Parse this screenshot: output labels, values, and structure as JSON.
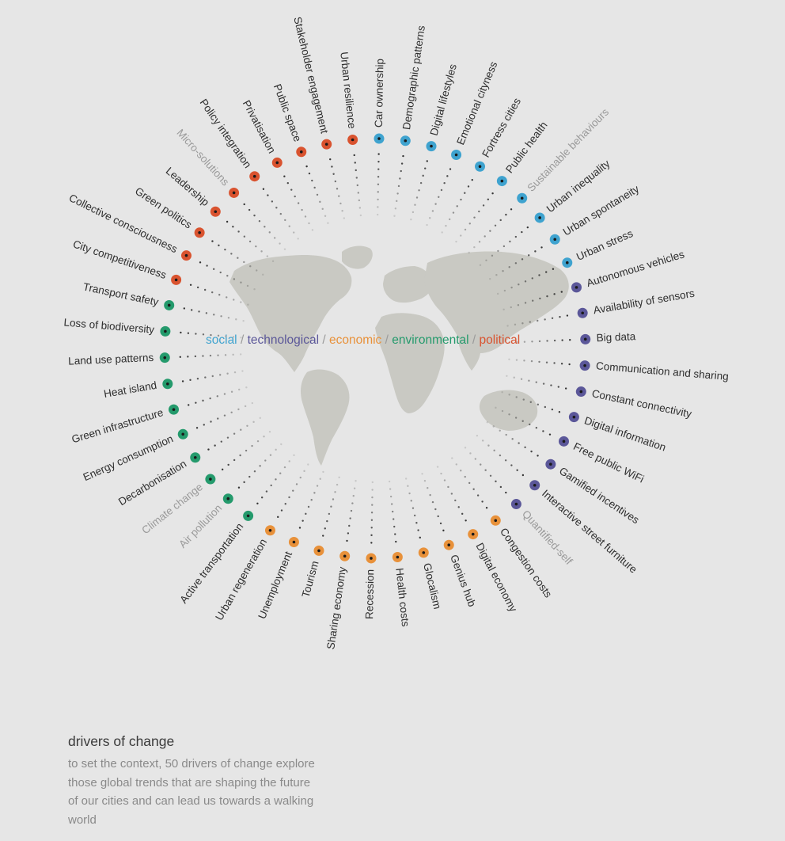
{
  "colors": {
    "background": "#e6e6e6",
    "social": "#3fa3cf",
    "technological": "#5b5799",
    "economic": "#e8913a",
    "environmental": "#249a6c",
    "political": "#d9532f",
    "map": "#c8c8c2",
    "label_text": "#2e2e2e",
    "label_faded": "#9a9a9a"
  },
  "legend": {
    "social": "social",
    "technological": "technological",
    "economic": "economic",
    "environmental": "environmental",
    "political": "political",
    "separator": " / "
  },
  "caption": {
    "title": "drivers of change",
    "body": "to set the context, 50 drivers of change explore those global trends that are shaping the future of our cities and can lead us towards a walking world"
  },
  "drivers": [
    {
      "label": "Car ownership",
      "category": "social",
      "faded": false
    },
    {
      "label": "Demographic patterns",
      "category": "social",
      "faded": false
    },
    {
      "label": "Digital lifestyles",
      "category": "social",
      "faded": false
    },
    {
      "label": "Emotional cityness",
      "category": "social",
      "faded": false
    },
    {
      "label": "Fortress cities",
      "category": "social",
      "faded": false
    },
    {
      "label": "Public health",
      "category": "social",
      "faded": false
    },
    {
      "label": "Sustainable behaviours",
      "category": "social",
      "faded": true
    },
    {
      "label": "Urban inequality",
      "category": "social",
      "faded": false
    },
    {
      "label": "Urban spontaneity",
      "category": "social",
      "faded": false
    },
    {
      "label": "Urban stress",
      "category": "social",
      "faded": false
    },
    {
      "label": "Autonomous vehicles",
      "category": "technological",
      "faded": false
    },
    {
      "label": "Availability of sensors",
      "category": "technological",
      "faded": false
    },
    {
      "label": "Big data",
      "category": "technological",
      "faded": false
    },
    {
      "label": "Communication and sharing",
      "category": "technological",
      "faded": false
    },
    {
      "label": "Constant connectivity",
      "category": "technological",
      "faded": false
    },
    {
      "label": "Digital information",
      "category": "technological",
      "faded": false
    },
    {
      "label": "Free public WiFi",
      "category": "technological",
      "faded": false
    },
    {
      "label": "Gamified incentives",
      "category": "technological",
      "faded": false
    },
    {
      "label": "Interactive street furniture",
      "category": "technological",
      "faded": false
    },
    {
      "label": "Quantified-self",
      "category": "technological",
      "faded": true
    },
    {
      "label": "Congestion costs",
      "category": "economic",
      "faded": false
    },
    {
      "label": "Digital economy",
      "category": "economic",
      "faded": false
    },
    {
      "label": "Genius hub",
      "category": "economic",
      "faded": false
    },
    {
      "label": "Glocalism",
      "category": "economic",
      "faded": false
    },
    {
      "label": "Health costs",
      "category": "economic",
      "faded": false
    },
    {
      "label": "Recession",
      "category": "economic",
      "faded": false
    },
    {
      "label": "Sharing economy",
      "category": "economic",
      "faded": false
    },
    {
      "label": "Tourism",
      "category": "economic",
      "faded": false
    },
    {
      "label": "Unemployment",
      "category": "economic",
      "faded": false
    },
    {
      "label": "Urban regeneration",
      "category": "economic",
      "faded": false
    },
    {
      "label": "Active transportation",
      "category": "environmental",
      "faded": false
    },
    {
      "label": "Air pollution",
      "category": "environmental",
      "faded": true
    },
    {
      "label": "Climate change",
      "category": "environmental",
      "faded": true
    },
    {
      "label": "Decarbonisation",
      "category": "environmental",
      "faded": false
    },
    {
      "label": "Energy consumption",
      "category": "environmental",
      "faded": false
    },
    {
      "label": "Green infrastructure",
      "category": "environmental",
      "faded": false
    },
    {
      "label": "Heat island",
      "category": "environmental",
      "faded": false
    },
    {
      "label": "Land use patterns",
      "category": "environmental",
      "faded": false
    },
    {
      "label": "Loss of biodiversity",
      "category": "environmental",
      "faded": false
    },
    {
      "label": "Transport safety",
      "category": "environmental",
      "faded": false
    },
    {
      "label": "City competitiveness",
      "category": "political",
      "faded": false
    },
    {
      "label": "Collective consciousness",
      "category": "political",
      "faded": false
    },
    {
      "label": "Green politics",
      "category": "political",
      "faded": false
    },
    {
      "label": "Leadership",
      "category": "political",
      "faded": false
    },
    {
      "label": "Micro-solutions",
      "category": "political",
      "faded": true
    },
    {
      "label": "Policy integration",
      "category": "political",
      "faded": false
    },
    {
      "label": "Privatisation",
      "category": "political",
      "faded": false
    },
    {
      "label": "Public space",
      "category": "political",
      "faded": false
    },
    {
      "label": "Stakeholder engagement",
      "category": "political",
      "faded": false
    },
    {
      "label": "Urban resilience",
      "category": "political",
      "faded": false
    }
  ]
}
